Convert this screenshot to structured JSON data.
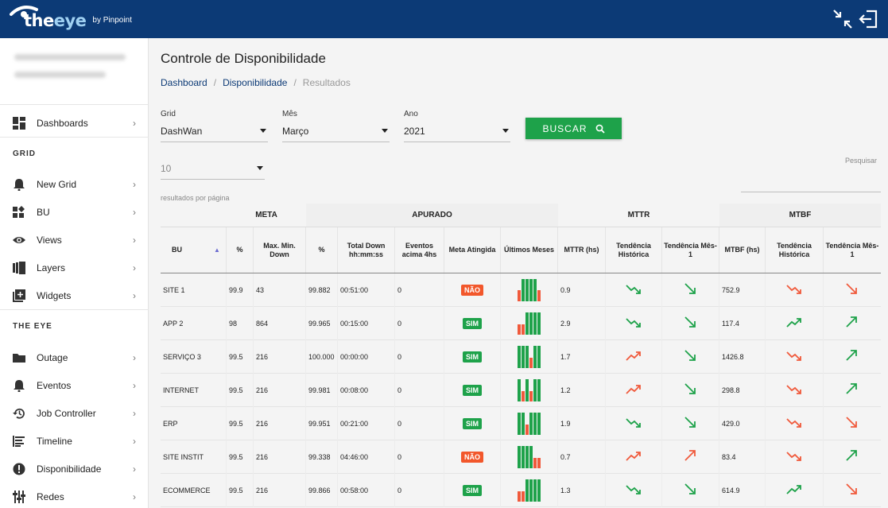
{
  "app": {
    "logo_the": "the",
    "logo_eye": "eye",
    "logo_by": "by Pinpoint"
  },
  "sidebar": {
    "user_name": "Saulo Menegheti De Britto",
    "user_org": "PINPOINT TECNOLOGIA",
    "items_top": [
      {
        "label": "Dashboards",
        "icon": "dashboard-icon"
      }
    ],
    "section_grid": "GRID",
    "items_grid": [
      {
        "label": "New Grid",
        "icon": "bell-icon"
      },
      {
        "label": "BU",
        "icon": "widgets-icon"
      },
      {
        "label": "Views",
        "icon": "eye-icon"
      },
      {
        "label": "Layers",
        "icon": "layers-icon"
      },
      {
        "label": "Widgets",
        "icon": "add-box-icon"
      }
    ],
    "section_theeye": "THE EYE",
    "items_theeye": [
      {
        "label": "Outage",
        "icon": "folder-icon"
      },
      {
        "label": "Eventos",
        "icon": "bell-icon"
      },
      {
        "label": "Job Controller",
        "icon": "history-icon"
      },
      {
        "label": "Timeline",
        "icon": "timeline-icon"
      },
      {
        "label": "Disponibilidade",
        "icon": "alert-icon"
      },
      {
        "label": "Redes",
        "icon": "sliders-icon"
      }
    ]
  },
  "main": {
    "title": "Controle de Disponibilidade",
    "breadcrumb": [
      "Dashboard",
      "Disponibilidade",
      "Resultados"
    ],
    "filters": {
      "grid_label": "Grid",
      "grid_value": "DashWan",
      "mes_label": "Mês",
      "mes_value": "Março",
      "ano_label": "Ano",
      "ano_value": "2021",
      "page_size": "10",
      "button": "BUSCAR",
      "search_label": "Pesquisar",
      "results_per_page": "resultados por página"
    }
  },
  "table": {
    "groups": [
      "META",
      "APURADO",
      "MTTR",
      "MTBF"
    ],
    "headers": {
      "bu": "BU",
      "meta_pct": "%",
      "meta_down": "Max. Min. Down",
      "ap_pct": "%",
      "ap_down": "Total Down hh:mm:ss",
      "ap_eventos": "Eventos acima 4hs",
      "ap_meta": "Meta Atingida",
      "ap_ultimos": "Últimos Meses",
      "mttr": "MTTR (hs)",
      "mttr_hist": "Tendência Histórica",
      "mttr_mes": "Tendência Mês-1",
      "mtbf": "MTBF (hs)",
      "mtbf_hist": "Tendência Histórica",
      "mtbf_mes": "Tendência Mês-1"
    },
    "rows": [
      {
        "bu": "SITE 1",
        "meta_pct": "99.9",
        "meta_down": "43",
        "ap_pct": "99.882",
        "ap_down": "00:51:00",
        "eventos": "0",
        "meta": "NÃO",
        "bars": [
          [
            0.5,
            "r"
          ],
          [
            1,
            "g"
          ],
          [
            1,
            "g"
          ],
          [
            1,
            "g"
          ],
          [
            1,
            "g"
          ],
          [
            0.5,
            "r"
          ]
        ],
        "mttr": "0.9",
        "mttr_hist": "down-green",
        "mttr_mes": "down-green",
        "mtbf": "752.9",
        "mtbf_hist": "down-red",
        "mtbf_mes": "down-red"
      },
      {
        "bu": "APP 2",
        "meta_pct": "98",
        "meta_down": "864",
        "ap_pct": "99.965",
        "ap_down": "00:15:00",
        "eventos": "0",
        "meta": "SIM",
        "bars": [
          [
            0.45,
            "r"
          ],
          [
            0.45,
            "r"
          ],
          [
            1,
            "g"
          ],
          [
            1,
            "g"
          ],
          [
            1,
            "g"
          ],
          [
            1,
            "g"
          ]
        ],
        "mttr": "2.9",
        "mttr_hist": "down-green",
        "mttr_mes": "down-green",
        "mtbf": "117.4",
        "mtbf_hist": "up-green",
        "mtbf_mes": "up-green"
      },
      {
        "bu": "SERVIÇO 3",
        "meta_pct": "99.5",
        "meta_down": "216",
        "ap_pct": "100.000",
        "ap_down": "00:00:00",
        "eventos": "0",
        "meta": "SIM",
        "bars": [
          [
            1,
            "g"
          ],
          [
            1,
            "g"
          ],
          [
            1,
            "g"
          ],
          [
            0.45,
            "r"
          ],
          [
            1,
            "g"
          ],
          [
            1,
            "g"
          ]
        ],
        "mttr": "1.7",
        "mttr_hist": "up-red",
        "mttr_mes": "down-green",
        "mtbf": "1426.8",
        "mtbf_hist": "down-red",
        "mtbf_mes": "up-green"
      },
      {
        "bu": "INTERNET",
        "meta_pct": "99.5",
        "meta_down": "216",
        "ap_pct": "99.981",
        "ap_down": "00:08:00",
        "eventos": "0",
        "meta": "SIM",
        "bars": [
          [
            1,
            "g"
          ],
          [
            0.45,
            "r"
          ],
          [
            1,
            "g"
          ],
          [
            0.45,
            "r"
          ],
          [
            1,
            "g"
          ],
          [
            1,
            "g"
          ]
        ],
        "mttr": "1.2",
        "mttr_hist": "up-red",
        "mttr_mes": "down-green",
        "mtbf": "298.8",
        "mtbf_hist": "down-red",
        "mtbf_mes": "up-green"
      },
      {
        "bu": "ERP",
        "meta_pct": "99.5",
        "meta_down": "216",
        "ap_pct": "99.951",
        "ap_down": "00:21:00",
        "eventos": "0",
        "meta": "SIM",
        "bars": [
          [
            1,
            "g"
          ],
          [
            1,
            "g"
          ],
          [
            0.45,
            "r"
          ],
          [
            1,
            "g"
          ],
          [
            1,
            "g"
          ],
          [
            1,
            "g"
          ]
        ],
        "mttr": "1.9",
        "mttr_hist": "down-green",
        "mttr_mes": "down-green",
        "mtbf": "429.0",
        "mtbf_hist": "down-red",
        "mtbf_mes": "down-red"
      },
      {
        "bu": "SITE INSTIT",
        "meta_pct": "99.5",
        "meta_down": "216",
        "ap_pct": "99.338",
        "ap_down": "04:46:00",
        "eventos": "0",
        "meta": "NÃO",
        "bars": [
          [
            1,
            "g"
          ],
          [
            1,
            "g"
          ],
          [
            1,
            "g"
          ],
          [
            1,
            "g"
          ],
          [
            0.45,
            "r"
          ],
          [
            0.45,
            "r"
          ]
        ],
        "mttr": "0.7",
        "mttr_hist": "up-red",
        "mttr_mes": "up-red",
        "mtbf": "83.4",
        "mtbf_hist": "down-red",
        "mtbf_mes": "up-green"
      },
      {
        "bu": "ECOMMERCE",
        "meta_pct": "99.5",
        "meta_down": "216",
        "ap_pct": "99.866",
        "ap_down": "00:58:00",
        "eventos": "0",
        "meta": "SIM",
        "bars": [
          [
            0.45,
            "r"
          ],
          [
            0.45,
            "r"
          ],
          [
            1,
            "g"
          ],
          [
            1,
            "g"
          ],
          [
            1,
            "g"
          ],
          [
            1,
            "g"
          ]
        ],
        "mttr": "1.3",
        "mttr_hist": "down-green",
        "mttr_mes": "down-green",
        "mtbf": "614.9",
        "mtbf_hist": "up-green",
        "mtbf_mes": "down-red"
      }
    ]
  },
  "colors": {
    "brand": "#0c3a76",
    "green": "#1ea24a",
    "red": "#f05a3c",
    "badge_red": "#f2572b"
  }
}
